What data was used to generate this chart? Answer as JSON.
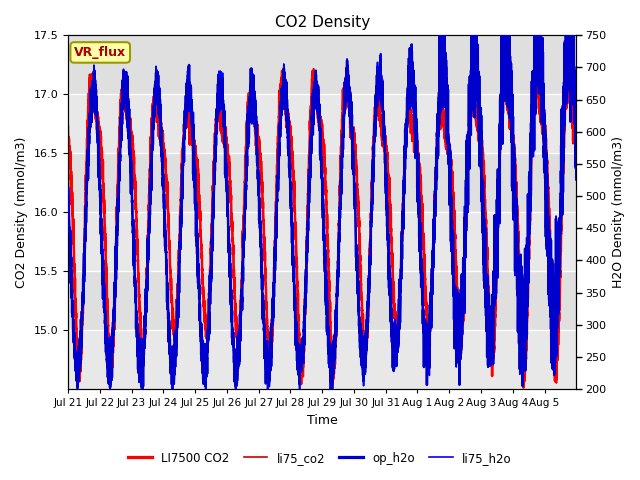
{
  "title": "CO2 Density",
  "xlabel": "Time",
  "ylabel_left": "CO2 Density (mmol/m3)",
  "ylabel_right": "H2O Density (mmol/m3)",
  "ylim_left": [
    14.5,
    17.5
  ],
  "ylim_right": [
    200,
    750
  ],
  "yticks_left": [
    15.0,
    15.5,
    16.0,
    16.5,
    17.0,
    17.5
  ],
  "yticks_right": [
    200,
    250,
    300,
    350,
    400,
    450,
    500,
    550,
    600,
    650,
    700,
    750
  ],
  "xtick_labels": [
    "Jul 21",
    "Jul 22",
    "Jul 23",
    "Jul 24",
    "Jul 25",
    "Jul 26",
    "Jul 27",
    "Jul 28",
    "Jul 29",
    "Jul 30",
    "Jul 31",
    "Aug 1",
    "Aug 2",
    "Aug 3",
    "Aug 4",
    "Aug 5"
  ],
  "vr_flux_label": "VR_flux",
  "vr_flux_bg": "#ffffaa",
  "vr_flux_text_color": "#aa0000",
  "vr_flux_edge_color": "#999900",
  "legend_labels": [
    "LI7500 CO2",
    "li75_co2",
    "op_h2o",
    "li75_h2o"
  ],
  "co2_color1": "#ff0000",
  "co2_color2": "#cc0000",
  "h2o_color1": "#0000cc",
  "h2o_color2": "#0000ff",
  "co2_lw1": 1.8,
  "co2_lw2": 1.2,
  "h2o_lw1": 1.8,
  "h2o_lw2": 1.2,
  "bg_color": "#e8e8e8",
  "n_days": 16,
  "co2_mean": 16.1,
  "co2_amp": 1.0,
  "h2o_mean": 450,
  "h2o_amp": 220,
  "figsize": [
    6.4,
    4.8
  ],
  "dpi": 100
}
